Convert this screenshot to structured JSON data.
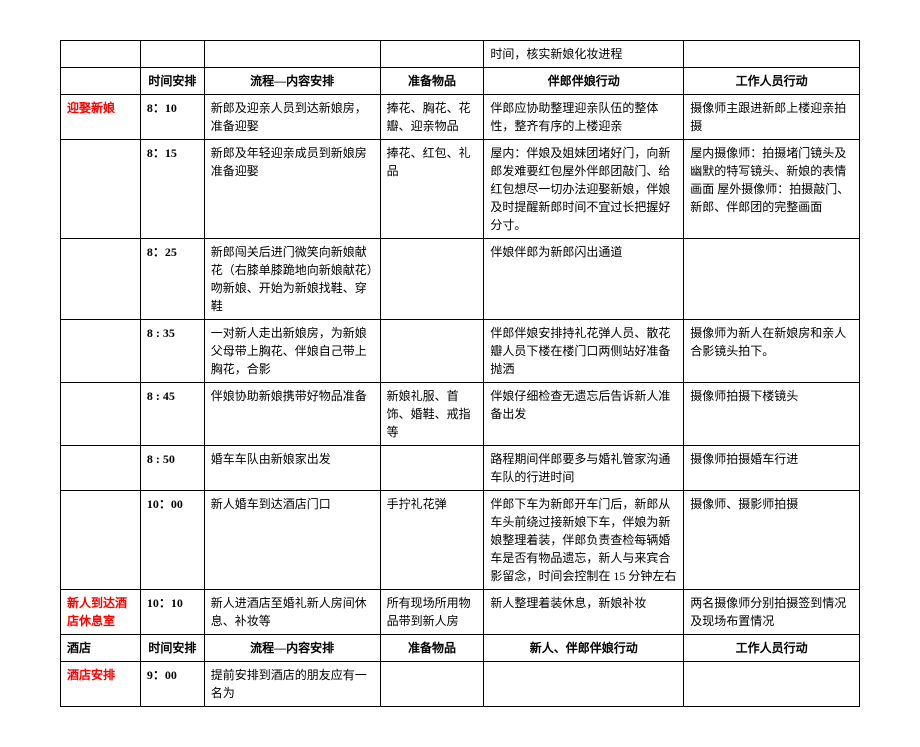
{
  "rows": [
    {
      "c1": "",
      "c2": "",
      "c3": "",
      "c4": "",
      "c5": "时间，核实新娘化妆进程",
      "c6": ""
    },
    {
      "c1": "",
      "c2": "时间安排",
      "c3": "流程—内容安排",
      "c4": "准备物品",
      "c5": "伴郎伴娘行动",
      "c6": "工作人员行动",
      "hdr": true
    },
    {
      "c1": "迎娶新娘",
      "c1red": true,
      "c2": "8：10",
      "c3": "新郎及迎亲人员到达新娘房，准备迎娶",
      "c4": "捧花、胸花、花瓣、迎亲物品",
      "c5": "伴郎应协助整理迎亲队伍的整体性，整齐有序的上楼迎亲",
      "c6": "摄像师主跟进新郎上楼迎亲拍摄"
    },
    {
      "c1": "",
      "c2": "8：15",
      "c3": "新郎及年轻迎亲成员到新娘房准备迎娶",
      "c4": "捧花、红包、礼品",
      "c5": "屋内：伴娘及姐妹团堵好门，向新郎发难要红包屋外伴郎团敲门、给红包想尽一切办法迎娶新娘，伴娘及时提醒新郎时间不宜过长把握好分寸。",
      "c6": "屋内摄像师：拍摄堵门镜头及幽默的特写镜头、新娘的表情画面 屋外摄像师：拍摄敲门、新郎、伴郎团的完整画面"
    },
    {
      "c1": "",
      "c2": "8：25",
      "c3": "新郎闯关后进门微笑向新娘献花（右膝单膝跪地向新娘献花）吻新娘、开始为新娘找鞋、穿鞋",
      "c4": "",
      "c5": "伴娘伴郎为新郎闪出通道",
      "c6": ""
    },
    {
      "c1": "",
      "c2": "8 : 35",
      "c3": "一对新人走出新娘房，为新娘父母带上胸花、伴娘自己带上胸花，合影",
      "c4": "",
      "c5": "伴郎伴娘安排持礼花弹人员、散花瓣人员下楼在楼门口两侧站好准备抛洒",
      "c6": "摄像师为新人在新娘房和亲人合影镜头拍下。"
    },
    {
      "c1": "",
      "c2": "8 : 45",
      "c3": "伴娘协助新娘携带好物品准备",
      "c4": "新娘礼服、首饰、婚鞋、戒指等",
      "c5": "伴娘仔细检查无遗忘后告诉新人准备出发",
      "c6": "摄像师拍摄下楼镜头"
    },
    {
      "c1": "",
      "c2": "8 : 50",
      "c3": "婚车车队由新娘家出发",
      "c4": "",
      "c5": "路程期间伴郎要多与婚礼管家沟通车队的行进时间",
      "c6": "摄像师拍摄婚车行进"
    },
    {
      "c1": "",
      "c2": "10：00",
      "c3": "新人婚车到达酒店门口",
      "c4": "手拧礼花弹",
      "c5": "伴郎下车为新郎开车门后，新郎从车头前绕过接新娘下车，伴娘为新娘整理着装，伴郎负责查检每辆婚车是否有物品遗忘，新人与来宾合影留念，时间会控制在 15 分钟左右",
      "c6": "摄像师、摄影师拍摄"
    },
    {
      "c1": "新人到达酒店休息室",
      "c1red": true,
      "c2": "10：10",
      "c3": "新人进酒店至婚礼新人房间休息、补妆等",
      "c4": "所有现场所用物品带到新人房",
      "c5": "新人整理着装休息，新娘补妆",
      "c6": "两名摄像师分别拍摄签到情况及现场布置情况"
    },
    {
      "c1": "酒店",
      "c2": "时间安排",
      "c3": "流程—内容安排",
      "c4": "准备物品",
      "c5": "新人、伴郎伴娘行动",
      "c6": "工作人员行动",
      "hdr": true
    },
    {
      "c1": "酒店安排",
      "c1red": true,
      "c2": "9：00",
      "c3": "提前安排到酒店的朋友应有一名为",
      "c4": "",
      "c5": "",
      "c6": ""
    }
  ]
}
